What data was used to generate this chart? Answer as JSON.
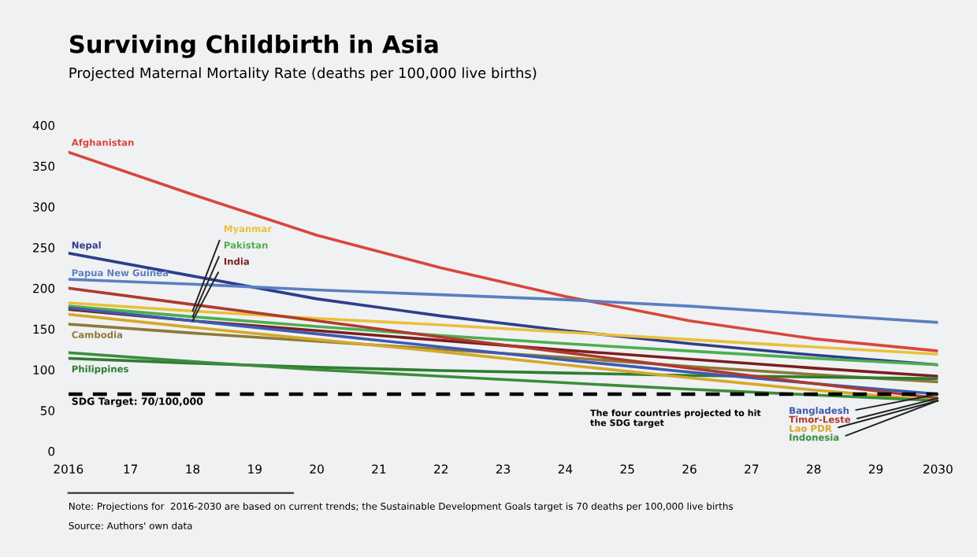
{
  "chart_data": {
    "type": "line",
    "title": "Surviving Childbirth in Asia",
    "subtitle": "Projected Maternal Mortality Rate (deaths per 100,000 live births)",
    "x": [
      2016,
      2018,
      2020,
      2022,
      2024,
      2026,
      2028,
      2030
    ],
    "xlim": [
      2016,
      2030
    ],
    "xticks": [
      {
        "value": 2016,
        "label": "2016"
      },
      {
        "value": 2017,
        "label": "17"
      },
      {
        "value": 2018,
        "label": "18"
      },
      {
        "value": 2019,
        "label": "19"
      },
      {
        "value": 2020,
        "label": "20"
      },
      {
        "value": 2021,
        "label": "21"
      },
      {
        "value": 2022,
        "label": "22"
      },
      {
        "value": 2023,
        "label": "23"
      },
      {
        "value": 2024,
        "label": "24"
      },
      {
        "value": 2025,
        "label": "25"
      },
      {
        "value": 2026,
        "label": "26"
      },
      {
        "value": 2027,
        "label": "27"
      },
      {
        "value": 2028,
        "label": "28"
      },
      {
        "value": 2029,
        "label": "29"
      },
      {
        "value": 2030,
        "label": "2030"
      }
    ],
    "ylim": [
      0,
      400
    ],
    "yticks": [
      0,
      50,
      100,
      150,
      200,
      250,
      300,
      350,
      400
    ],
    "grid": false,
    "legend": false,
    "marker": "none",
    "line_style": "solid",
    "series": [
      {
        "name": "Afghanistan",
        "color": "#d9463a",
        "values": [
          367,
          315,
          265,
          225,
          190,
          160,
          138,
          123
        ]
      },
      {
        "name": "Nepal",
        "color": "#2d3e8c",
        "values": [
          243,
          215,
          187,
          166,
          148,
          132,
          118,
          106
        ]
      },
      {
        "name": "Papua New Guinea",
        "color": "#5a7fc0",
        "values": [
          211,
          205,
          198,
          192,
          186,
          178,
          168,
          158
        ]
      },
      {
        "name": "Myanmar",
        "color": "#e8c13a",
        "values": [
          182,
          172,
          163,
          155,
          146,
          137,
          128,
          119
        ]
      },
      {
        "name": "Pakistan",
        "color": "#4caf50",
        "values": [
          178,
          165,
          153,
          142,
          132,
          123,
          114,
          106
        ]
      },
      {
        "name": "India",
        "color": "#7a1f1f",
        "values": [
          174,
          160,
          148,
          136,
          124,
          113,
          102,
          92
        ]
      },
      {
        "name": "Cambodia",
        "color": "#8c7a3a",
        "values": [
          156,
          145,
          135,
          125,
          115,
          104,
          94,
          85
        ]
      },
      {
        "name": "Philippines",
        "color": "#2e7d32",
        "values": [
          114,
          108,
          103,
          99,
          96,
          93,
          91,
          89
        ]
      },
      {
        "name": "Bangladesh",
        "color": "#3d5bb0",
        "values": [
          176,
          160,
          144,
          128,
          112,
          97,
          83,
          70
        ]
      },
      {
        "name": "Timor-Leste",
        "color": "#b03a2e",
        "values": [
          200,
          180,
          160,
          140,
          121,
          102,
          83,
          65
        ]
      },
      {
        "name": "Lao PDR",
        "color": "#d4a82a",
        "values": [
          168,
          152,
          137,
          122,
          106,
          90,
          75,
          62
        ]
      },
      {
        "name": "Indonesia",
        "color": "#3c8c3c",
        "values": [
          121,
          110,
          100,
          92,
          84,
          76,
          69,
          62
        ]
      }
    ],
    "ref_lines": [
      {
        "axis": "y",
        "value": 70,
        "label": "SDG Target: 70/100,000",
        "color": "#000000",
        "line_style": "dashed"
      }
    ],
    "annotations": [
      "The four countries projected to hit the SDG target",
      "Note: Projections for  2016-2030 are based on current trends; the Sustainable Development Goals target is 70 deaths per 100,000 live births",
      "Source: Authors' own data"
    ]
  }
}
